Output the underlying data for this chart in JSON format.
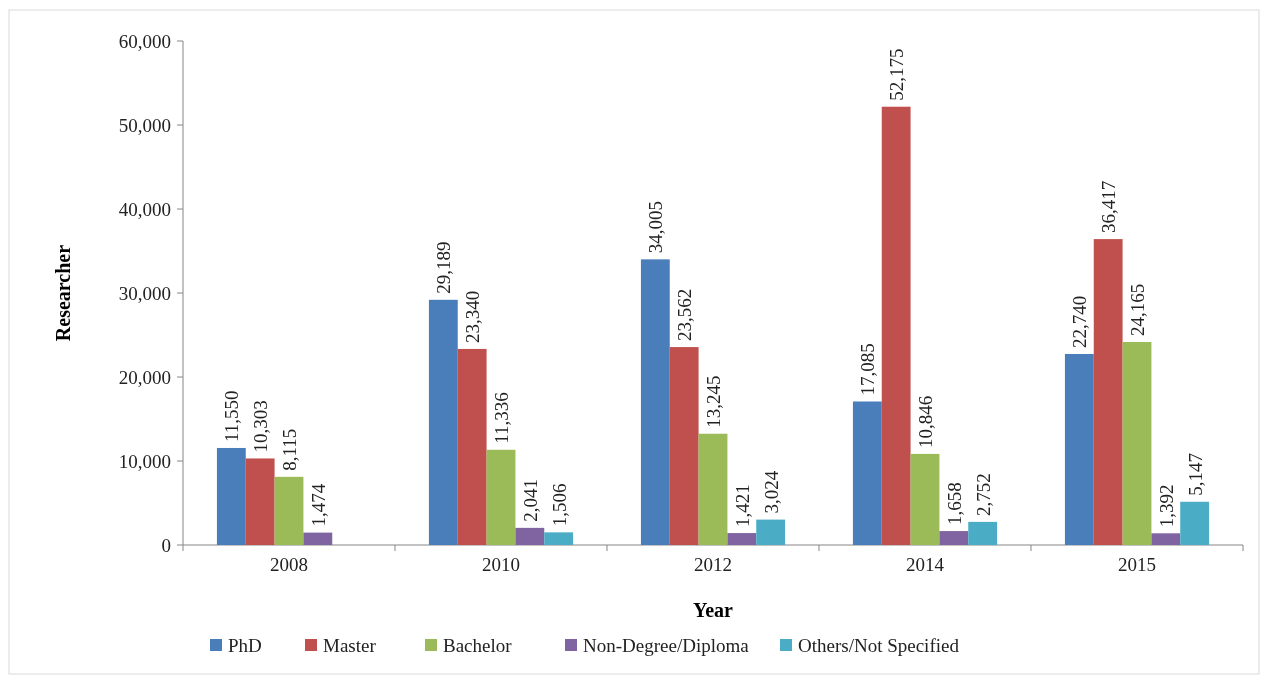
{
  "chart_data": {
    "type": "bar",
    "xlabel": "Year",
    "ylabel": "Researcher",
    "categories": [
      "2008",
      "2010",
      "2012",
      "2014",
      "2015"
    ],
    "series": [
      {
        "name": "PhD",
        "color": "#4a7ebb",
        "values": [
          11550,
          29189,
          34005,
          17085,
          22740
        ],
        "value_labels": [
          "11,550",
          "29,189",
          "34,005",
          "17,085",
          "22,740"
        ]
      },
      {
        "name": "Master",
        "color": "#c0504d",
        "values": [
          10303,
          23340,
          23562,
          52175,
          36417
        ],
        "value_labels": [
          "10,303",
          "23,340",
          "23,562",
          "52,175",
          "36,417"
        ]
      },
      {
        "name": "Bachelor",
        "color": "#9bbb59",
        "values": [
          8115,
          11336,
          13245,
          10846,
          24165
        ],
        "value_labels": [
          "8,115",
          "11,336",
          "13,245",
          "10,846",
          "24,165"
        ]
      },
      {
        "name": "Non-Degree/Diploma",
        "color": "#8064a2",
        "values": [
          1474,
          2041,
          1421,
          1658,
          1392
        ],
        "value_labels": [
          "1,474",
          "2,041",
          "1,421",
          "1,658",
          "1,392"
        ]
      },
      {
        "name": "Others/Not Specified",
        "color": "#4bacc6",
        "values": [
          null,
          1506,
          3024,
          2752,
          5147
        ],
        "value_labels": [
          null,
          "1,506",
          "3,024",
          "2,752",
          "5,147"
        ]
      }
    ],
    "ylim": [
      0,
      60000
    ],
    "yticks": [
      {
        "value": 0,
        "label": "0"
      },
      {
        "value": 10000,
        "label": "10,000"
      },
      {
        "value": 20000,
        "label": "20,000"
      },
      {
        "value": 30000,
        "label": "30,000"
      },
      {
        "value": 40000,
        "label": "40,000"
      },
      {
        "value": 50000,
        "label": "50,000"
      },
      {
        "value": 60000,
        "label": "60,000"
      }
    ],
    "legend": "bottom",
    "grid": false
  }
}
